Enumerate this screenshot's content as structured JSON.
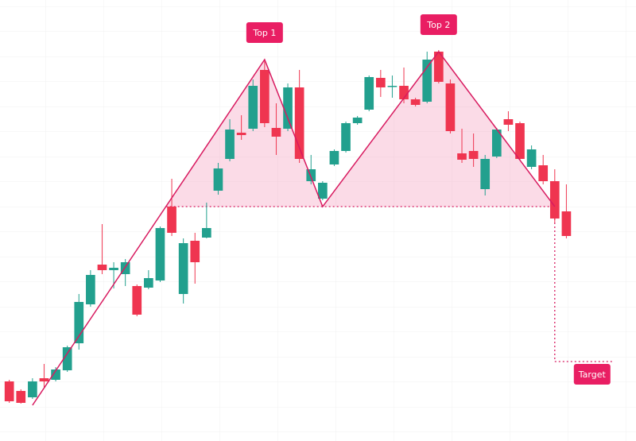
{
  "chart_data": {
    "type": "candlestick",
    "open": [
      75,
      63,
      55,
      79,
      77,
      89,
      123,
      172,
      222,
      215,
      210,
      195,
      193,
      202,
      295,
      185,
      252,
      256,
      315,
      355,
      388,
      393,
      467,
      394,
      393,
      445,
      327,
      305,
      348,
      365,
      400,
      417,
      457,
      446,
      447,
      430,
      427,
      490,
      450,
      362,
      365,
      317,
      358,
      405,
      400,
      345,
      347,
      327,
      289
    ],
    "high": [
      77,
      65,
      79,
      97,
      93,
      120,
      185,
      215,
      273,
      225,
      229,
      197,
      215,
      270,
      330,
      255,
      262,
      300,
      350,
      405,
      410,
      455,
      480,
      425,
      450,
      467,
      360,
      327,
      367,
      402,
      409,
      460,
      467,
      460,
      470,
      432,
      490,
      492,
      455,
      393,
      387,
      360,
      394,
      415,
      402,
      372,
      360,
      342,
      323
    ],
    "low": [
      48,
      47,
      53,
      67,
      75,
      87,
      115,
      169,
      210,
      192,
      195,
      157,
      191,
      200,
      258,
      173,
      198,
      255,
      310,
      352,
      379,
      390,
      395,
      360,
      390,
      350,
      323,
      303,
      346,
      363,
      398,
      415,
      433,
      432,
      425,
      421,
      425,
      450,
      387,
      350,
      345,
      309,
      356,
      390,
      353,
      342,
      323,
      275,
      255
    ],
    "close": [
      50,
      48,
      75,
      75,
      90,
      118,
      175,
      209,
      215,
      218,
      225,
      159,
      205,
      268,
      262,
      249,
      225,
      268,
      343,
      392,
      385,
      447,
      400,
      383,
      445,
      355,
      342,
      325,
      365,
      400,
      407,
      458,
      445,
      447,
      430,
      423,
      480,
      452,
      390,
      354,
      355,
      355,
      392,
      398,
      355,
      367,
      327,
      280,
      258
    ],
    "up_color": "#22a08e",
    "down_color": "#ef3550",
    "xlim": [
      -0.8,
      54
    ],
    "ylim": [
      0,
      555
    ],
    "pattern": {
      "x": [
        2,
        22,
        27,
        37,
        47
      ],
      "y": [
        45,
        480,
        295,
        490,
        295
      ],
      "color": "#d81b60"
    },
    "neckline": 295,
    "annotations": [
      {
        "text": "Top 1",
        "x": 22,
        "y": 480
      },
      {
        "text": "Top 2",
        "x": 37,
        "y": 490
      }
    ],
    "target": {
      "text": "Target",
      "value": 100,
      "end": 52
    }
  }
}
